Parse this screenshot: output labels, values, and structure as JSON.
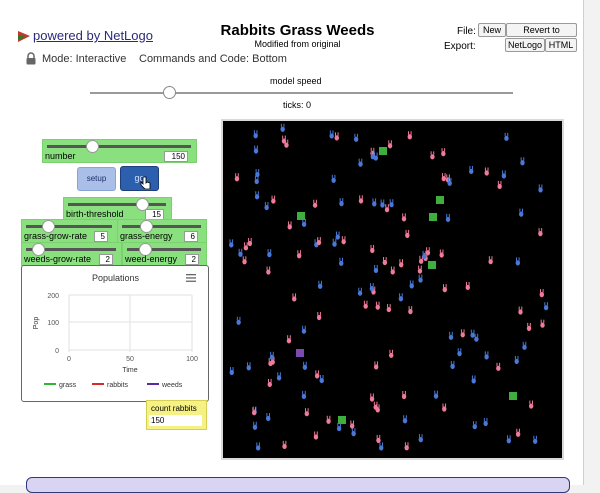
{
  "header": {
    "powered_by": "powered by NetLogo",
    "title": "Rabbits Grass Weeds",
    "subtitle": "Modified from original",
    "file_label": "File:",
    "export_label": "Export:",
    "new_button": "New",
    "revert_button": "Revert to Original",
    "export_netlogo": "NetLogo",
    "export_html": "HTML",
    "mode_text": "Mode: Interactive",
    "commands_text": "Commands and Code: Bottom"
  },
  "speed": {
    "label": "model speed",
    "ticks_text": "ticks: 0",
    "level": 0.18
  },
  "widgets": {
    "number": {
      "label": "number",
      "value": "150",
      "fraction": 0.3
    },
    "setup": "setup",
    "go": "go",
    "birth_threshold": {
      "label": "birth-threshold",
      "value": "15",
      "fraction": 0.75
    },
    "grass_grow_rate": {
      "label": "grass-grow-rate",
      "value": "5",
      "fraction": 0.28
    },
    "grass_energy": {
      "label": "grass-energy",
      "value": "6",
      "fraction": 0.3
    },
    "weeds_grow_rate": {
      "label": "weeds-grow-rate",
      "value": "2",
      "fraction": 0.12
    },
    "weed_energy": {
      "label": "weed-energy",
      "value": "2",
      "fraction": 0.12
    }
  },
  "plot": {
    "title": "Populations",
    "y_label": "Pop",
    "x_label": "Time",
    "y_ticks": [
      "200",
      "100",
      "0"
    ],
    "x_ticks": [
      "0",
      "50",
      "100"
    ],
    "legend": [
      {
        "name": "grass",
        "color": "#2fb82f"
      },
      {
        "name": "rabbits",
        "color": "#d62a2a"
      },
      {
        "name": "weeds",
        "color": "#5a2aa0"
      }
    ]
  },
  "monitor": {
    "label": "count rabbits",
    "value": "150"
  },
  "colors": {
    "green_widget": "#8ae07e",
    "view_bg": "#000000",
    "rabbit_pink": "#f07a9a",
    "rabbit_blue": "#4a78d8",
    "grass_patch": "#3fae3f",
    "weed_patch": "#7a4ab0"
  },
  "icons": {
    "logo": "netlogo-logo-icon",
    "lock": "lock-icon",
    "plot_menu": "hamburger-icon",
    "cursor": "hand-pointer-icon"
  }
}
